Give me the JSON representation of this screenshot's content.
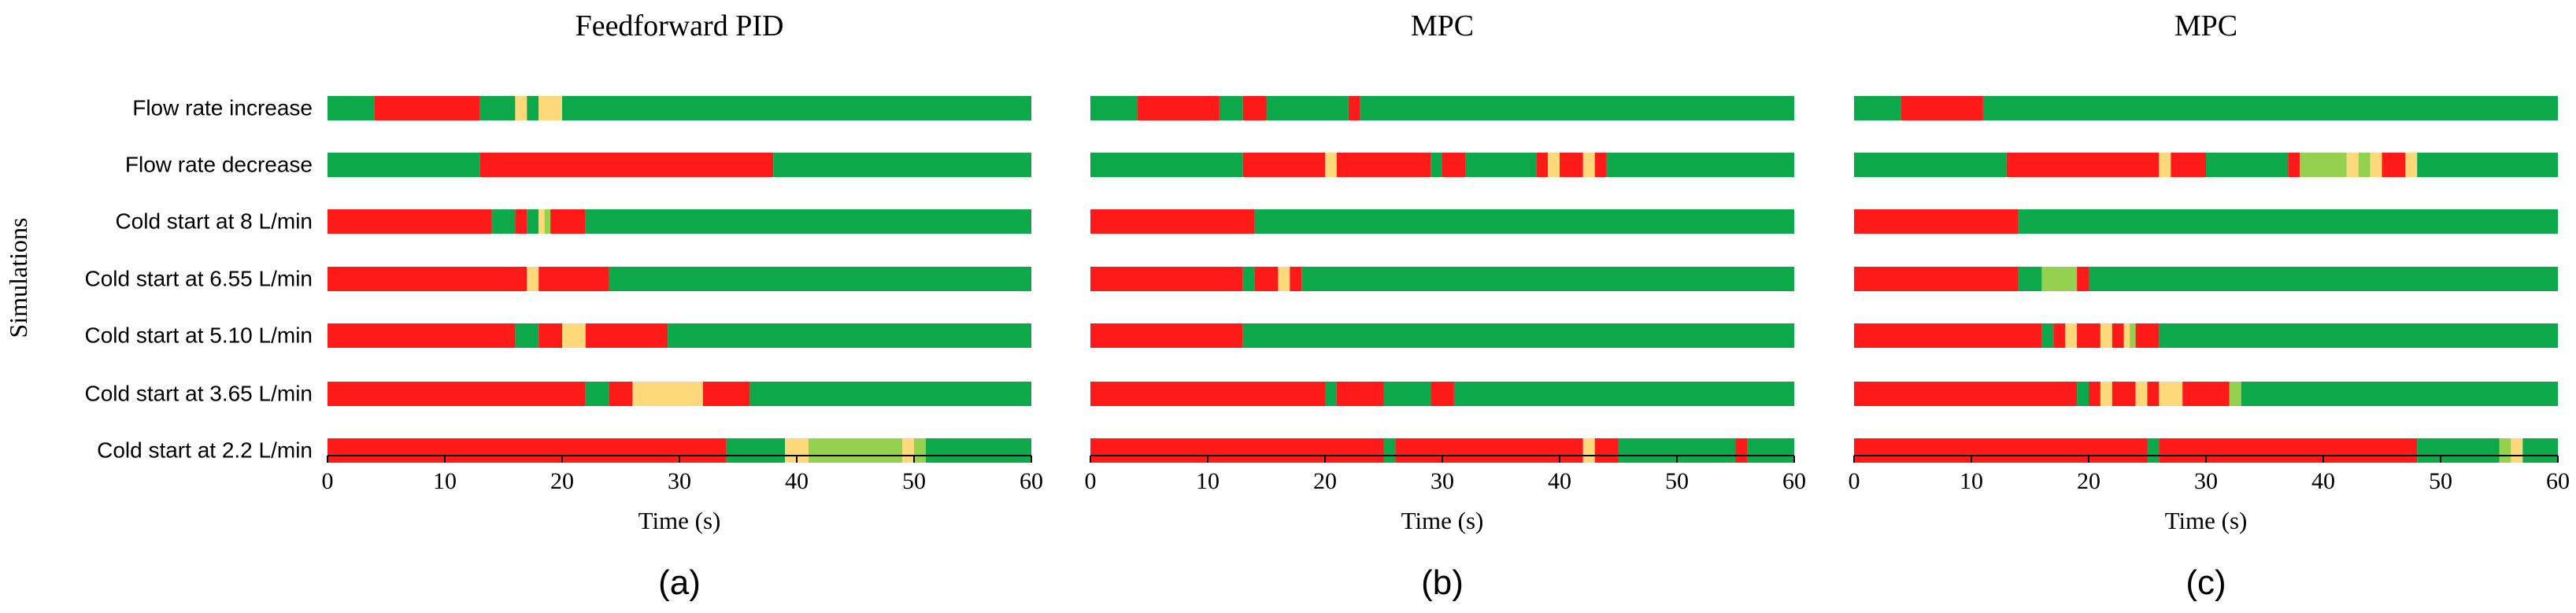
{
  "colors": {
    "red": "#ff1a1a",
    "green": "#0ca84a",
    "yellow": "#fed97b",
    "lightgreen": "#93d14f",
    "axis": "#000000"
  },
  "y_axis_title": "Simulations",
  "chart_data": [
    {
      "type": "bar",
      "orientation": "horizontal",
      "stacked": true,
      "title": "Feedforward PID",
      "subfigure_label": "(a)",
      "xlabel": "Time (s)",
      "xlim": [
        0,
        60
      ],
      "xticks": [
        0,
        10,
        20,
        30,
        40,
        50,
        60
      ],
      "categories": [
        "Flow rate increase",
        "Flow rate decrease",
        "Cold start at 8 L/min",
        "Cold start at 6.55 L/min",
        "Cold start at 5.10 L/min",
        "Cold start at 3.65 L/min",
        "Cold start at 2.2 L/min"
      ],
      "segments": [
        [
          [
            0,
            4,
            "green"
          ],
          [
            4,
            13,
            "red"
          ],
          [
            13,
            16,
            "green"
          ],
          [
            16,
            17,
            "yellow"
          ],
          [
            17,
            18,
            "green"
          ],
          [
            18,
            20,
            "yellow"
          ],
          [
            20,
            60,
            "green"
          ]
        ],
        [
          [
            0,
            13,
            "green"
          ],
          [
            13,
            38,
            "red"
          ],
          [
            38,
            60,
            "green"
          ]
        ],
        [
          [
            0,
            14,
            "red"
          ],
          [
            14,
            16,
            "green"
          ],
          [
            16,
            17,
            "red"
          ],
          [
            17,
            18,
            "green"
          ],
          [
            18,
            18.5,
            "yellow"
          ],
          [
            18.5,
            19,
            "lightgreen"
          ],
          [
            19,
            22,
            "red"
          ],
          [
            22,
            60,
            "green"
          ]
        ],
        [
          [
            0,
            17,
            "red"
          ],
          [
            17,
            18,
            "yellow"
          ],
          [
            18,
            24,
            "red"
          ],
          [
            24,
            60,
            "green"
          ]
        ],
        [
          [
            0,
            16,
            "red"
          ],
          [
            16,
            18,
            "green"
          ],
          [
            18,
            20,
            "red"
          ],
          [
            20,
            22,
            "yellow"
          ],
          [
            22,
            29,
            "red"
          ],
          [
            29,
            60,
            "green"
          ]
        ],
        [
          [
            0,
            22,
            "red"
          ],
          [
            22,
            24,
            "green"
          ],
          [
            24,
            26,
            "red"
          ],
          [
            26,
            32,
            "yellow"
          ],
          [
            32,
            36,
            "red"
          ],
          [
            36,
            60,
            "green"
          ]
        ],
        [
          [
            0,
            34,
            "red"
          ],
          [
            34,
            39,
            "green"
          ],
          [
            39,
            41,
            "yellow"
          ],
          [
            41,
            49,
            "lightgreen"
          ],
          [
            49,
            50,
            "yellow"
          ],
          [
            50,
            51,
            "lightgreen"
          ],
          [
            51,
            60,
            "green"
          ]
        ]
      ]
    },
    {
      "type": "bar",
      "orientation": "horizontal",
      "stacked": true,
      "title": "MPC",
      "subfigure_label": "(b)",
      "xlabel": "Time (s)",
      "xlim": [
        0,
        60
      ],
      "xticks": [
        0,
        10,
        20,
        30,
        40,
        50,
        60
      ],
      "categories": [
        "Flow rate increase",
        "Flow rate decrease",
        "Cold start at 8 L/min",
        "Cold start at 6.55 L/min",
        "Cold start at 5.10 L/min",
        "Cold start at 3.65 L/min",
        "Cold start at 2.2 L/min"
      ],
      "segments": [
        [
          [
            0,
            4,
            "green"
          ],
          [
            4,
            11,
            "red"
          ],
          [
            11,
            13,
            "green"
          ],
          [
            13,
            15,
            "red"
          ],
          [
            15,
            22,
            "green"
          ],
          [
            22,
            23,
            "red"
          ],
          [
            23,
            60,
            "green"
          ]
        ],
        [
          [
            0,
            13,
            "green"
          ],
          [
            13,
            20,
            "red"
          ],
          [
            20,
            21,
            "yellow"
          ],
          [
            21,
            29,
            "red"
          ],
          [
            29,
            30,
            "green"
          ],
          [
            30,
            32,
            "red"
          ],
          [
            32,
            38,
            "green"
          ],
          [
            38,
            39,
            "red"
          ],
          [
            39,
            40,
            "yellow"
          ],
          [
            40,
            42,
            "red"
          ],
          [
            42,
            43,
            "yellow"
          ],
          [
            43,
            44,
            "red"
          ],
          [
            44,
            60,
            "green"
          ]
        ],
        [
          [
            0,
            14,
            "red"
          ],
          [
            14,
            60,
            "green"
          ]
        ],
        [
          [
            0,
            13,
            "red"
          ],
          [
            13,
            14,
            "green"
          ],
          [
            14,
            16,
            "red"
          ],
          [
            16,
            17,
            "yellow"
          ],
          [
            17,
            18,
            "red"
          ],
          [
            18,
            60,
            "green"
          ]
        ],
        [
          [
            0,
            13,
            "red"
          ],
          [
            13,
            60,
            "green"
          ]
        ],
        [
          [
            0,
            20,
            "red"
          ],
          [
            20,
            21,
            "green"
          ],
          [
            21,
            25,
            "red"
          ],
          [
            25,
            29,
            "green"
          ],
          [
            29,
            31,
            "red"
          ],
          [
            31,
            60,
            "green"
          ]
        ],
        [
          [
            0,
            25,
            "red"
          ],
          [
            25,
            26,
            "green"
          ],
          [
            26,
            42,
            "red"
          ],
          [
            42,
            43,
            "yellow"
          ],
          [
            43,
            45,
            "red"
          ],
          [
            45,
            55,
            "green"
          ],
          [
            55,
            56,
            "red"
          ],
          [
            56,
            60,
            "green"
          ]
        ]
      ]
    },
    {
      "type": "bar",
      "orientation": "horizontal",
      "stacked": true,
      "title": "MPC",
      "subfigure_label": "(c)",
      "xlabel": "Time (s)",
      "xlim": [
        0,
        60
      ],
      "xticks": [
        0,
        10,
        20,
        30,
        40,
        50,
        60
      ],
      "categories": [
        "Flow rate increase",
        "Flow rate decrease",
        "Cold start at 8 L/min",
        "Cold start at 6.55 L/min",
        "Cold start at 5.10 L/min",
        "Cold start at 3.65 L/min",
        "Cold start at 2.2 L/min"
      ],
      "segments": [
        [
          [
            0,
            4,
            "green"
          ],
          [
            4,
            11,
            "red"
          ],
          [
            11,
            60,
            "green"
          ]
        ],
        [
          [
            0,
            13,
            "green"
          ],
          [
            13,
            26,
            "red"
          ],
          [
            26,
            27,
            "yellow"
          ],
          [
            27,
            30,
            "red"
          ],
          [
            30,
            37,
            "green"
          ],
          [
            37,
            38,
            "red"
          ],
          [
            38,
            42,
            "lightgreen"
          ],
          [
            42,
            43,
            "yellow"
          ],
          [
            43,
            44,
            "lightgreen"
          ],
          [
            44,
            45,
            "yellow"
          ],
          [
            45,
            47,
            "red"
          ],
          [
            47,
            48,
            "yellow"
          ],
          [
            48,
            60,
            "green"
          ]
        ],
        [
          [
            0,
            14,
            "red"
          ],
          [
            14,
            60,
            "green"
          ]
        ],
        [
          [
            0,
            14,
            "red"
          ],
          [
            14,
            16,
            "green"
          ],
          [
            16,
            19,
            "lightgreen"
          ],
          [
            19,
            20,
            "red"
          ],
          [
            20,
            60,
            "green"
          ]
        ],
        [
          [
            0,
            16,
            "red"
          ],
          [
            16,
            17,
            "green"
          ],
          [
            17,
            18,
            "red"
          ],
          [
            18,
            19,
            "yellow"
          ],
          [
            19,
            21,
            "red"
          ],
          [
            21,
            22,
            "yellow"
          ],
          [
            22,
            23,
            "red"
          ],
          [
            23,
            23.5,
            "yellow"
          ],
          [
            23.5,
            24,
            "lightgreen"
          ],
          [
            24,
            26,
            "red"
          ],
          [
            26,
            60,
            "green"
          ]
        ],
        [
          [
            0,
            19,
            "red"
          ],
          [
            19,
            20,
            "green"
          ],
          [
            20,
            21,
            "red"
          ],
          [
            21,
            22,
            "yellow"
          ],
          [
            22,
            24,
            "red"
          ],
          [
            24,
            25,
            "yellow"
          ],
          [
            25,
            26,
            "red"
          ],
          [
            26,
            28,
            "yellow"
          ],
          [
            28,
            32,
            "red"
          ],
          [
            32,
            33,
            "lightgreen"
          ],
          [
            33,
            60,
            "green"
          ]
        ],
        [
          [
            0,
            25,
            "red"
          ],
          [
            25,
            26,
            "green"
          ],
          [
            26,
            48,
            "red"
          ],
          [
            48,
            55,
            "green"
          ],
          [
            55,
            56,
            "lightgreen"
          ],
          [
            56,
            57,
            "yellow"
          ],
          [
            57,
            60,
            "green"
          ]
        ]
      ]
    }
  ]
}
